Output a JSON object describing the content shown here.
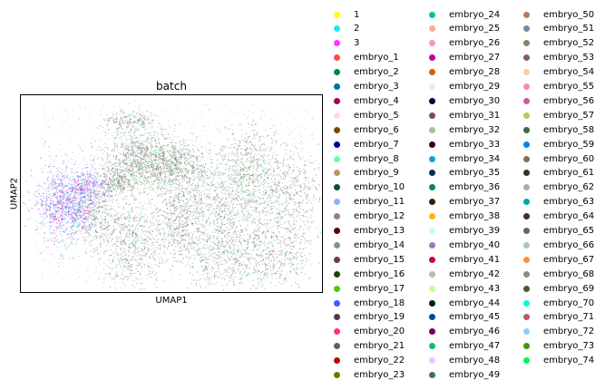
{
  "chart_data": {
    "type": "scatter",
    "title": "batch",
    "xlabel": "UMAP1",
    "ylabel": "UMAP2",
    "grid": false,
    "ticks": false,
    "legend_placement": "right",
    "legend_columns": 3,
    "series": [
      {
        "name": "1",
        "color": "#ffff00"
      },
      {
        "name": "2",
        "color": "#1ce6ff"
      },
      {
        "name": "3",
        "color": "#ff34ff"
      },
      {
        "name": "embryo_1",
        "color": "#ff4a46"
      },
      {
        "name": "embryo_2",
        "color": "#008941"
      },
      {
        "name": "embryo_3",
        "color": "#006fa6"
      },
      {
        "name": "embryo_4",
        "color": "#a30059"
      },
      {
        "name": "embryo_5",
        "color": "#ffdbe5"
      },
      {
        "name": "embryo_6",
        "color": "#7a4900"
      },
      {
        "name": "embryo_7",
        "color": "#0000a6"
      },
      {
        "name": "embryo_8",
        "color": "#63ffac"
      },
      {
        "name": "embryo_9",
        "color": "#b79762"
      },
      {
        "name": "embryo_10",
        "color": "#004d43"
      },
      {
        "name": "embryo_11",
        "color": "#8fb0ff"
      },
      {
        "name": "embryo_12",
        "color": "#997d87"
      },
      {
        "name": "embryo_13",
        "color": "#5a0007"
      },
      {
        "name": "embryo_14",
        "color": "#809693"
      },
      {
        "name": "embryo_15",
        "color": "#6a3a4c"
      },
      {
        "name": "embryo_16",
        "color": "#1b4400"
      },
      {
        "name": "embryo_17",
        "color": "#4fc601"
      },
      {
        "name": "embryo_18",
        "color": "#3b5dff"
      },
      {
        "name": "embryo_19",
        "color": "#4a3b53"
      },
      {
        "name": "embryo_20",
        "color": "#ff2f80"
      },
      {
        "name": "embryo_21",
        "color": "#61615a"
      },
      {
        "name": "embryo_22",
        "color": "#ba0900"
      },
      {
        "name": "embryo_23",
        "color": "#6b7900"
      },
      {
        "name": "embryo_24",
        "color": "#00c2a0"
      },
      {
        "name": "embryo_25",
        "color": "#ffaa92"
      },
      {
        "name": "embryo_26",
        "color": "#ff90c9"
      },
      {
        "name": "embryo_27",
        "color": "#b903aa"
      },
      {
        "name": "embryo_28",
        "color": "#d16100"
      },
      {
        "name": "embryo_29",
        "color": "#ddefff"
      },
      {
        "name": "embryo_30",
        "color": "#000035"
      },
      {
        "name": "embryo_31",
        "color": "#7b4f4b"
      },
      {
        "name": "embryo_32",
        "color": "#a1c299"
      },
      {
        "name": "embryo_33",
        "color": "#300018"
      },
      {
        "name": "embryo_34",
        "color": "#0aa6d8"
      },
      {
        "name": "embryo_35",
        "color": "#013349"
      },
      {
        "name": "embryo_36",
        "color": "#00846f"
      },
      {
        "name": "embryo_37",
        "color": "#372101"
      },
      {
        "name": "embryo_38",
        "color": "#ffb500"
      },
      {
        "name": "embryo_39",
        "color": "#c2ffed"
      },
      {
        "name": "embryo_40",
        "color": "#a079bf"
      },
      {
        "name": "embryo_41",
        "color": "#cc0744"
      },
      {
        "name": "embryo_42",
        "color": "#c0b9b2"
      },
      {
        "name": "embryo_43",
        "color": "#c2ff99"
      },
      {
        "name": "embryo_44",
        "color": "#001e09"
      },
      {
        "name": "embryo_45",
        "color": "#00489c"
      },
      {
        "name": "embryo_46",
        "color": "#6f0062"
      },
      {
        "name": "embryo_47",
        "color": "#0cbd66"
      },
      {
        "name": "embryo_48",
        "color": "#eec3ff"
      },
      {
        "name": "embryo_49",
        "color": "#456d75"
      },
      {
        "name": "embryo_50",
        "color": "#b77b68"
      },
      {
        "name": "embryo_51",
        "color": "#7a87a1"
      },
      {
        "name": "embryo_52",
        "color": "#788d66"
      },
      {
        "name": "embryo_53",
        "color": "#885578"
      },
      {
        "name": "embryo_54",
        "color": "#fad09f"
      },
      {
        "name": "embryo_55",
        "color": "#ff8a9a"
      },
      {
        "name": "embryo_56",
        "color": "#d157a0"
      },
      {
        "name": "embryo_57",
        "color": "#bec459"
      },
      {
        "name": "embryo_58",
        "color": "#456648"
      },
      {
        "name": "embryo_59",
        "color": "#0086ed"
      },
      {
        "name": "embryo_60",
        "color": "#886f4c"
      },
      {
        "name": "embryo_61",
        "color": "#34362d"
      },
      {
        "name": "embryo_62",
        "color": "#b4a8bd"
      },
      {
        "name": "embryo_63",
        "color": "#00a6aa"
      },
      {
        "name": "embryo_64",
        "color": "#452c2c"
      },
      {
        "name": "embryo_65",
        "color": "#636375"
      },
      {
        "name": "embryo_66",
        "color": "#a3c8c9"
      },
      {
        "name": "embryo_67",
        "color": "#ff913f"
      },
      {
        "name": "embryo_68",
        "color": "#938a81"
      },
      {
        "name": "embryo_69",
        "color": "#575329"
      },
      {
        "name": "embryo_70",
        "color": "#00fecf"
      },
      {
        "name": "embryo_71",
        "color": "#b05b6f"
      },
      {
        "name": "embryo_72",
        "color": "#8cd0ff"
      },
      {
        "name": "embryo_73",
        "color": "#3b9700"
      },
      {
        "name": "embryo_74",
        "color": "#04f757"
      }
    ]
  }
}
